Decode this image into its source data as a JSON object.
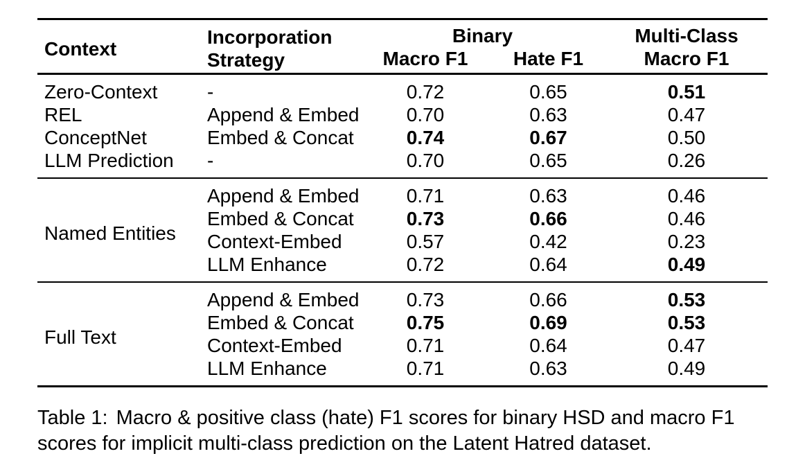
{
  "table": {
    "header": {
      "context": "Context",
      "incorporation": "Incorporation",
      "strategy": "Strategy",
      "binary": "Binary",
      "binary_macro_f1": "Macro F1",
      "binary_hate_f1": "Hate F1",
      "multiclass": "Multi-Class",
      "multiclass_macro_f1": "Macro F1"
    },
    "groups": [
      {
        "rows": [
          {
            "context": "Zero-Context",
            "strategy": "-",
            "macro_f1": "0.72",
            "hate_f1": "0.65",
            "mc_macro_f1": "0.51"
          },
          {
            "context": "REL",
            "strategy": "Append & Embed",
            "macro_f1": "0.70",
            "hate_f1": "0.63",
            "mc_macro_f1": "0.47"
          },
          {
            "context": "ConceptNet",
            "strategy": "Embed & Concat",
            "macro_f1": "0.74",
            "hate_f1": "0.67",
            "mc_macro_f1": "0.50"
          },
          {
            "context": "LLM Prediction",
            "strategy": "-",
            "macro_f1": "0.70",
            "hate_f1": "0.65",
            "mc_macro_f1": "0.26"
          }
        ]
      },
      {
        "label": "Named Entities",
        "rows": [
          {
            "strategy": "Append & Embed",
            "macro_f1": "0.71",
            "hate_f1": "0.63",
            "mc_macro_f1": "0.46"
          },
          {
            "strategy": "Embed & Concat",
            "macro_f1": "0.73",
            "hate_f1": "0.66",
            "mc_macro_f1": "0.46"
          },
          {
            "strategy": "Context-Embed",
            "macro_f1": "0.57",
            "hate_f1": "0.42",
            "mc_macro_f1": "0.23"
          },
          {
            "strategy": "LLM Enhance",
            "macro_f1": "0.72",
            "hate_f1": "0.64",
            "mc_macro_f1": "0.49"
          }
        ]
      },
      {
        "label": "Full Text",
        "rows": [
          {
            "strategy": "Append & Embed",
            "macro_f1": "0.73",
            "hate_f1": "0.66",
            "mc_macro_f1": "0.53"
          },
          {
            "strategy": "Embed & Concat",
            "macro_f1": "0.75",
            "hate_f1": "0.69",
            "mc_macro_f1": "0.53"
          },
          {
            "strategy": "Context-Embed",
            "macro_f1": "0.71",
            "hate_f1": "0.64",
            "mc_macro_f1": "0.47"
          },
          {
            "strategy": "LLM Enhance",
            "macro_f1": "0.71",
            "hate_f1": "0.63",
            "mc_macro_f1": "0.49"
          }
        ]
      }
    ]
  },
  "caption": {
    "label": "Table 1:",
    "line1": "Macro & positive class (hate) F1 scores for binary HSD and macro F1",
    "line2": "scores for implicit multi-class prediction on the Latent Hatred dataset."
  }
}
